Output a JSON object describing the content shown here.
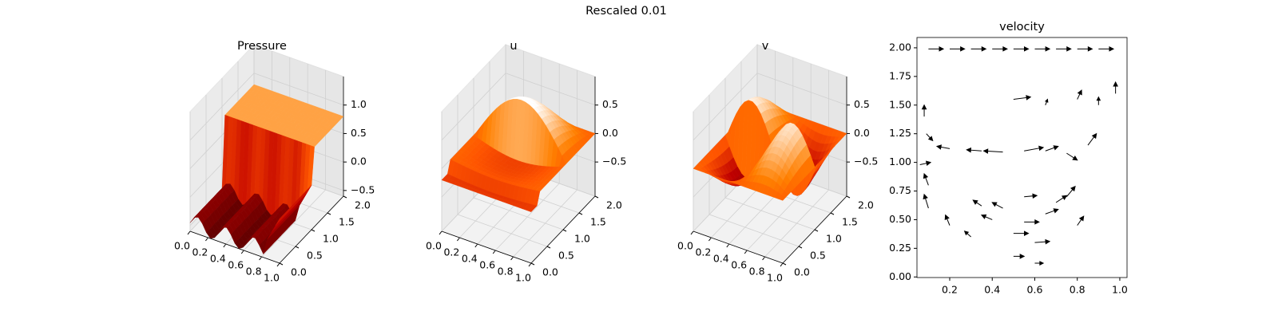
{
  "figure_title": "Rescaled 0.01",
  "chart_data": [
    {
      "type": "surface3d",
      "title": "Pressure",
      "xlim": [
        0,
        1
      ],
      "ylim": [
        0,
        2
      ],
      "zlim": [
        -0.6,
        1.5
      ],
      "xticks": [
        {
          "value": 0,
          "label": "0.0"
        },
        0.2,
        0.4,
        0.6,
        0.8,
        {
          "value": 1,
          "label": "1.0"
        }
      ],
      "yticks": [
        {
          "value": 0,
          "label": "0.0"
        },
        0.5,
        {
          "value": 1,
          "label": "1.0"
        },
        1.5,
        {
          "value": 2,
          "label": "2.0"
        }
      ],
      "zticks": [
        {
          "value": -0.5,
          "label": "−0.5"
        },
        {
          "value": 0,
          "label": "0.0"
        },
        0.5,
        {
          "value": 1,
          "label": "1.0"
        }
      ]
    },
    {
      "type": "surface3d",
      "title": "u",
      "xlim": [
        0,
        1
      ],
      "ylim": [
        0,
        2
      ],
      "zlim": [
        -1.1,
        1.0
      ],
      "xticks": [
        {
          "value": 0,
          "label": "0.0"
        },
        0.2,
        0.4,
        0.6,
        0.8,
        {
          "value": 1,
          "label": "1.0"
        }
      ],
      "yticks": [
        {
          "value": 0,
          "label": "0.0"
        },
        0.5,
        {
          "value": 1,
          "label": "1.0"
        },
        1.5,
        {
          "value": 2,
          "label": "2.0"
        }
      ],
      "zticks": [
        {
          "value": -0.5,
          "label": "−0.5"
        },
        {
          "value": 0,
          "label": "0.0"
        },
        0.5
      ]
    },
    {
      "type": "surface3d",
      "title": "v",
      "xlim": [
        0,
        1
      ],
      "ylim": [
        0,
        2
      ],
      "zlim": [
        -1.1,
        1.0
      ],
      "xticks": [
        {
          "value": 0,
          "label": "0.0"
        },
        0.2,
        0.4,
        0.6,
        0.8,
        {
          "value": 1,
          "label": "1.0"
        }
      ],
      "yticks": [
        {
          "value": 0,
          "label": "0.0"
        },
        0.5,
        {
          "value": 1,
          "label": "1.0"
        },
        1.5,
        {
          "value": 2,
          "label": "2.0"
        }
      ],
      "zticks": [
        {
          "value": -0.5,
          "label": "−0.5"
        },
        {
          "value": 0,
          "label": "0.0"
        },
        0.5
      ]
    },
    {
      "type": "quiver",
      "title": "velocity",
      "color": "#000000",
      "xlim": [
        0.046,
        1.034
      ],
      "ylim": [
        -0.005,
        2.09
      ],
      "xticks": [
        0.2,
        0.4,
        0.6,
        0.8,
        {
          "value": 1,
          "label": "1.0"
        }
      ],
      "yticks": [
        {
          "value": 0,
          "label": "0.00"
        },
        0.25,
        {
          "value": 0.5,
          "label": "0.50"
        },
        0.75,
        {
          "value": 1,
          "label": "1.00"
        },
        1.25,
        {
          "value": 1.5,
          "label": "1.50"
        },
        1.75,
        {
          "value": 2,
          "label": "2.00"
        }
      ],
      "x": [
        0.1,
        0.2,
        0.3,
        0.4,
        0.5,
        0.6,
        0.7,
        0.8,
        0.9,
        0.2,
        0.35,
        0.45,
        0.55,
        0.65,
        0.75,
        0.85,
        0.5,
        0.65,
        0.8,
        0.9,
        0.98,
        0.45,
        0.55,
        0.65,
        0.7,
        0.5,
        0.6,
        0.4,
        0.35,
        0.55,
        0.75,
        0.8,
        0.3,
        0.2,
        0.1,
        0.1,
        0.5,
        0.6,
        0.06,
        0.08,
        0.09
      ],
      "y": [
        1.99,
        1.99,
        1.99,
        1.99,
        1.99,
        1.99,
        1.99,
        1.99,
        1.99,
        1.12,
        1.1,
        1.09,
        1.1,
        1.1,
        1.08,
        1.15,
        1.55,
        1.5,
        1.55,
        1.5,
        1.6,
        0.6,
        0.48,
        0.55,
        0.65,
        0.38,
        0.3,
        0.5,
        0.62,
        0.7,
        0.7,
        0.45,
        0.35,
        0.45,
        0.6,
        0.8,
        0.18,
        0.12,
        0.98,
        1.4,
        1.25
      ],
      "u": [
        0.07,
        0.07,
        0.07,
        0.07,
        0.07,
        0.07,
        0.07,
        0.07,
        0.07,
        -0.06,
        -0.07,
        -0.09,
        0.09,
        0.06,
        0.05,
        0.04,
        0.08,
        0.01,
        0.02,
        0,
        0,
        -0.05,
        0.07,
        0.06,
        0.05,
        0.07,
        0.07,
        -0.05,
        -0.04,
        0.06,
        0.04,
        0.03,
        -0.03,
        -0.02,
        -0.02,
        -0.02,
        0.05,
        0.04,
        0.05,
        0,
        0.03
      ],
      "v": [
        0,
        0,
        0,
        0,
        0,
        0,
        0,
        0,
        0,
        0.02,
        0.01,
        0.01,
        0.03,
        0.04,
        -0.06,
        0.1,
        0.02,
        0.05,
        0.08,
        0.07,
        0.1,
        0.05,
        0,
        0.04,
        0.06,
        0,
        0.01,
        0.04,
        0.05,
        0.01,
        0.09,
        0.08,
        0.05,
        0.09,
        0.12,
        0.1,
        0,
        0,
        0.02,
        0.1,
        -0.06
      ]
    }
  ]
}
